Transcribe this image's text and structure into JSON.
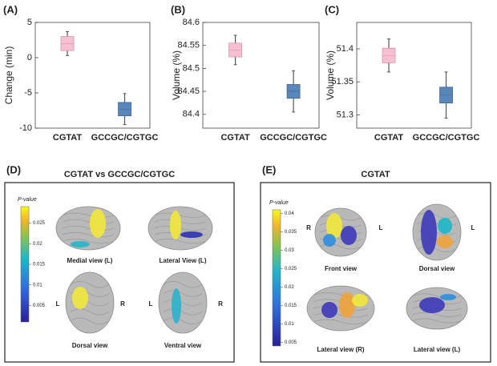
{
  "chart_data": [
    {
      "type": "errorbar",
      "panel": "(A)",
      "ylabel": "Change (min)",
      "categories": [
        "CGTAT",
        "GCCGC/CGTGC"
      ],
      "values": [
        2.0,
        -7.3
      ],
      "box_errors": [
        1.0,
        0.95
      ],
      "errors": [
        1.7,
        2.2
      ],
      "colors": [
        "#f7bfd2",
        "#5a87b9"
      ],
      "ylim": [
        -10,
        5
      ],
      "yticks": [
        -10,
        -5,
        0,
        5
      ]
    },
    {
      "type": "errorbar",
      "panel": "(B)",
      "ylabel": "Volume (%)",
      "categories": [
        "CGTAT",
        "GCCGC/CGTGC"
      ],
      "values": [
        84.54,
        84.45
      ],
      "box_errors": [
        0.015,
        0.015
      ],
      "errors": [
        0.032,
        0.045
      ],
      "colors": [
        "#f7bfd2",
        "#5a87b9"
      ],
      "ylim": [
        84.37,
        84.6
      ],
      "yticks": [
        84.4,
        84.45,
        84.5,
        84.55,
        84.6
      ]
    },
    {
      "type": "errorbar",
      "panel": "(C)",
      "ylabel": "Volume (%)",
      "categories": [
        "CGTAT",
        "GCCGC/CGTGC"
      ],
      "values": [
        51.39,
        51.33
      ],
      "box_errors": [
        0.011,
        0.012
      ],
      "errors": [
        0.025,
        0.035
      ],
      "colors": [
        "#f7bfd2",
        "#5a87b9"
      ],
      "ylim": [
        51.28,
        51.44
      ],
      "yticks": [
        51.3,
        51.35,
        51.4
      ]
    }
  ],
  "panels": [
    {
      "panel": "(D)",
      "title": "CGTAT vs GCCGC/CGTGC",
      "colorbar": {
        "label": "P-value",
        "lim": [
          0.001,
          0.029
        ],
        "ticks": [
          0.005,
          0.01,
          0.015,
          0.02,
          0.025
        ]
      },
      "views": [
        "Medial view (L)",
        "Lateral View (L)",
        "Dorsal view",
        "Ventral view"
      ],
      "sides": [
        "L",
        "R",
        "L",
        "R"
      ]
    },
    {
      "panel": "(E)",
      "title": "CGTAT",
      "colorbar": {
        "label": "P-value",
        "lim": [
          0.004,
          0.041
        ],
        "ticks": [
          0.005,
          0.01,
          0.015,
          0.02,
          0.025,
          0.03,
          0.035,
          0.04
        ]
      },
      "views": [
        "Front view",
        "Dorsal view",
        "Lateral view (R)",
        "Lateral view (L)"
      ],
      "sides": [
        "R",
        "L",
        "L"
      ]
    }
  ]
}
